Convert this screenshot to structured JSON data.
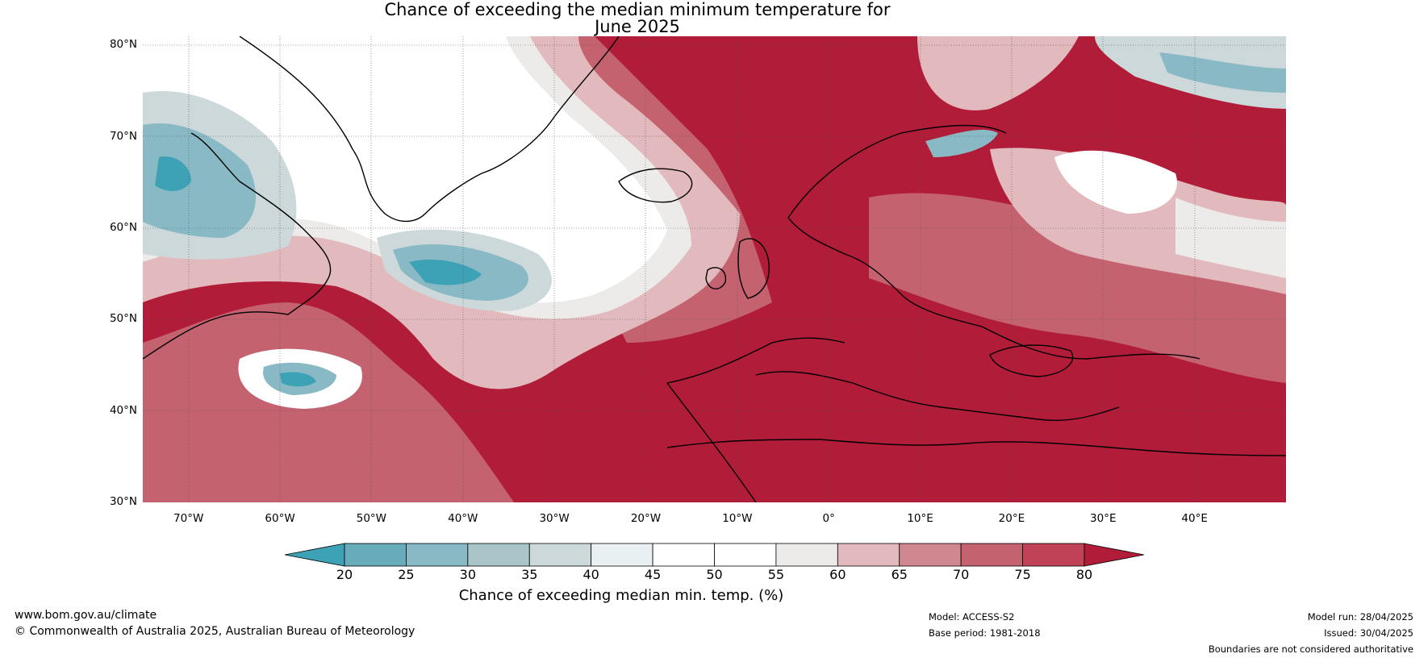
{
  "title": {
    "line1": "Chance of exceeding the median minimum temperature for",
    "line2": "June 2025"
  },
  "map": {
    "lat_ticks": [
      "80°N",
      "70°N",
      "60°N",
      "50°N",
      "40°N",
      "30°N"
    ],
    "lon_ticks": [
      "70°W",
      "60°W",
      "50°W",
      "40°W",
      "30°W",
      "20°W",
      "10°W",
      "0°",
      "10°E",
      "20°E",
      "30°E",
      "40°E"
    ],
    "extent": {
      "lon_min": -75,
      "lon_max": 50,
      "lat_min": 30,
      "lat_max": 81
    }
  },
  "colorbar": {
    "label": "Chance of exceeding median min. temp. (%)",
    "ticks": [
      "20",
      "25",
      "30",
      "35",
      "40",
      "45",
      "50",
      "55",
      "60",
      "65",
      "70",
      "75",
      "80"
    ],
    "colors": [
      "#3ea2b6",
      "#68abbb",
      "#89b9c4",
      "#a9c5c9",
      "#cdd8da",
      "#e9f0f1",
      "#ffffff",
      "#ffffff",
      "#ecebea",
      "#e2b9bd",
      "#d08790",
      "#c56270",
      "#bf4256",
      "#b11c39"
    ]
  },
  "footer": {
    "website": "www.bom.gov.au/climate",
    "copyright": "© Commonwealth of Australia 2025, Australian Bureau of Meteorology",
    "model": "Model: ACCESS-S2",
    "base_period": "Base period: 1981-2018",
    "model_run": "Model run: 28/04/2025",
    "issued": "Issued: 30/04/2025",
    "disclaimer": "Boundaries are not considered authoritative"
  }
}
